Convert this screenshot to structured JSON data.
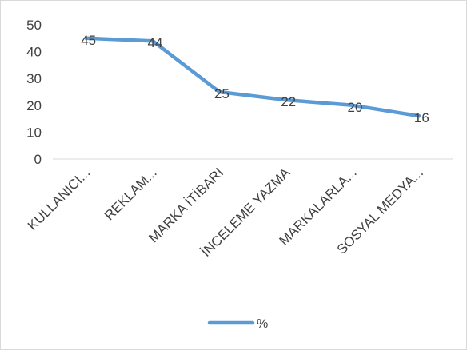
{
  "chart_data": {
    "type": "line",
    "categories": [
      "KULLANICI...",
      "REKLAM...",
      "MARKA İTİBARI",
      "İNCELEME YAZMA",
      "MARKALARLA...",
      "SOSYAL MEDYA..."
    ],
    "series": [
      {
        "name": "%",
        "values": [
          45,
          44,
          25,
          22,
          20,
          16
        ]
      }
    ],
    "title": "",
    "xlabel": "",
    "ylabel": "",
    "ylim": [
      0,
      50
    ],
    "yticks": [
      0,
      10,
      20,
      30,
      40,
      50
    ],
    "grid": false,
    "legend_position": "bottom",
    "data_labels": true,
    "line_color": "#5b9bd5"
  }
}
